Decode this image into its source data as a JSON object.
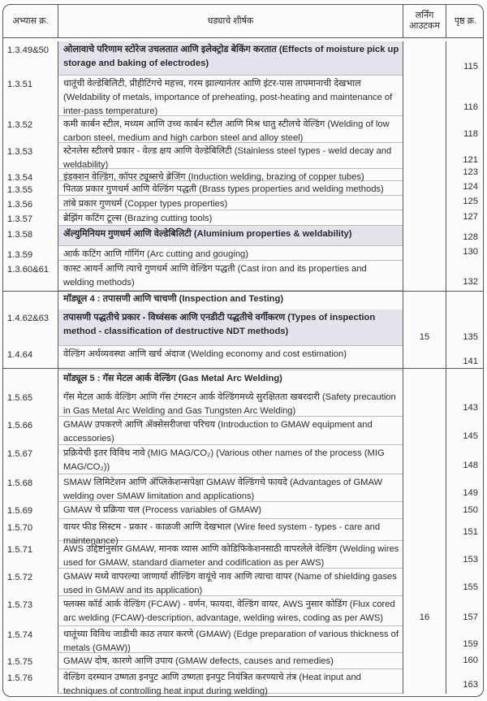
{
  "header": {
    "col_exercise": "अभ्यास क्र.",
    "col_title": "धड्याचे शीर्षक",
    "col_learning_outcome": "लर्निंग आउटकम",
    "col_page": "पृष्ठ क्र."
  },
  "rows": [
    {
      "no": "1.3.49&50",
      "title": "ओलावाचे परिणाम स्टोरेज उचलतात आणि इलेक्ट्रोड बेकिंग करतात (Effects of moisture pick up storage and baking of electrodes)",
      "page": "115",
      "highlight": true
    },
    {
      "no": "1.3.51",
      "title": "धातूंची वेल्डेबिलिटी, प्रीहीटिंगचे महत्त्व, गरम झाल्यानंतर आणि इंटर-पास तापमानाची देखभाल (Weldability of metals, importance of preheating, post-heating and maintenance of inter-pass temperature)",
      "page": "116"
    },
    {
      "no": "1.3.52",
      "title": "कमी कार्बन स्टील, मध्यम आणि उच्च कार्बन स्टील आणि मिश्र धातु स्टीलचे वेल्डिंग (Welding of low carbon steel, medium and high carbon steel and alloy steel)",
      "page": "118"
    },
    {
      "no": "1.3.53",
      "title": "स्टेनलेस स्टीलचे प्रकार - वेल्ड क्षय आणि वेल्डेबिलिटी (Stainless steel types - weld decay and weldability)",
      "page": "121"
    },
    {
      "no": "1.3.54",
      "title": "इंडक्शन वेल्डिंग, कॉपर ट्यूब्सचे ब्रेजिंग (Induction welding, brazing of copper tubes)",
      "page": "123"
    },
    {
      "no": "1.3.55",
      "title": "पितळ प्रकार गुणधर्म आणि वेल्डिंग पद्धती (Brass types properties and welding methods)",
      "page": "124"
    },
    {
      "no": "1.3.56",
      "title": "तांबे प्रकार गुणधर्म (Copper types properties)",
      "page": "125"
    },
    {
      "no": "1.3.57",
      "title": "ब्रेझिंग कटिंग टूल्स (Brazing cutting tools)",
      "page": "127"
    },
    {
      "no": "1.3.58",
      "title": "ॲल्युमिनियम गुणधर्म आणि वेल्डेबिलिटी (Aluminium properties & weldability)",
      "page": "128",
      "highlight": true
    },
    {
      "no": "1.3.59",
      "title": "आर्क कटिंग आणि गॉगिंग (Arc cutting and gouging)",
      "page": "130"
    },
    {
      "no": "1.3.60&61",
      "title": "कास्ट आयर्न आणि त्याचे गुणधर्म आणि वेल्डिंग पद्धती (Cast iron and its properties and welding methods)",
      "page": "132"
    },
    {
      "no": "",
      "title": "मॉड्यूल 4 : तपासणी आणि चाचणी (Inspection and Testing)",
      "page": "",
      "module": true
    },
    {
      "no": "1.4.62&63",
      "title": "तपासणी पद्धतीचे प्रकार - विध्वंसक आणि एनडीटी पद्धतीचे वर्गीकरण (Types of inspection method - classification of destructive NDT methods)",
      "page": "135",
      "highlight": true,
      "learning_outcome": "15"
    },
    {
      "no": "1.4.64",
      "title": "वेल्डिंग अर्थव्यवस्था आणि खर्च अंदाज (Welding economy and cost estimation)",
      "page": "141"
    },
    {
      "no": "",
      "title": "मॉड्यूल 5 : गॅस मेटल आर्क वेल्डिंग (Gas Metal Arc Welding)",
      "page": "",
      "module": true
    },
    {
      "no": "1.5.65",
      "title": "गॅस मेटल आर्क वेल्डिंग आणि गॅस टंगस्टन आर्क वेल्डिंगमध्ये सुरक्षितता खबरदारी (Safety precaution in Gas Metal Arc Welding and Gas Tungsten Arc Welding)",
      "page": "143"
    },
    {
      "no": "1.5.66",
      "title": "GMAW उपकरणे आणि ॲक्सेसरीजचा परिचय (Introduction to GMAW equipment and accessories)",
      "page": "145"
    },
    {
      "no": "1.5.67",
      "title": "प्रक्रियेची इतर विविध नावे (MIG MAG/CO₂) (Various other names of the process (MIG MAG/CO₂))",
      "page": "148"
    },
    {
      "no": "1.5.68",
      "title": "SMAW लिमिटेशन आणि ॲप्लिकेशन्सपेक्षा GMAW वेल्डिंगचे फायदे (Advantages of GMAW welding over SMAW limitation and applications)",
      "page": "149"
    },
    {
      "no": "1.5.69",
      "title": "GMAW चे प्रक्रिया चल (Process variables of GMAW)",
      "page": "150"
    },
    {
      "no": "1.5.70",
      "title": "वायर फीड सिस्टम - प्रकार - काळजी आणि देखभाल (Wire feed system - types - care and maintenance)",
      "page": "151"
    },
    {
      "no": "1.5.71",
      "title": "AWS उद्दिष्टांनुसार GMAW, मानक व्यास आणि कोडिफिकेशनसाठी वापरलेले वेल्डिंग (Welding wires used for GMAW, standard diameter and codification as per AWS)",
      "page": "153"
    },
    {
      "no": "1.5.72",
      "title": "GMAW मध्ये वापरल्या जाणार्या शील्डिंग वायूंचे नाव आणि त्याचा वापर (Name of shielding gases used in GMAW and its application)",
      "page": "155"
    },
    {
      "no": "1.5.73",
      "title": "फ्लक्स कॉर्ड आर्क वेल्डिंग (FCAW) - वर्णन, फायदा, वेल्डिंग वायर, AWS नुसार कोडिंग (Flux cored arc welding (FCAW)-description, advantage, welding wires, coding as per AWS)",
      "page": "157",
      "learning_outcome": "16"
    },
    {
      "no": "1.5.74",
      "title": "धातूंच्या विविध जाडीची काठ तयार करणे (GMAW) (Edge preparation of various thickness of metals (GMAW))",
      "page": "159"
    },
    {
      "no": "1.5.75",
      "title": "GMAW दोष, कारणे आणि उपाय (GMAW defects, causes and remedies)",
      "page": "160"
    },
    {
      "no": "1.5.76",
      "title": "वेल्डिंग दरम्यान उष्णता इनपुट आणि उष्णता इनपुट नियंत्रित करण्याचे तंत्र (Heat input and techniques of controlling heat input during welding)",
      "page": "163"
    }
  ],
  "colors": {
    "highlight": "#e4e2ea",
    "border": "#555555"
  }
}
